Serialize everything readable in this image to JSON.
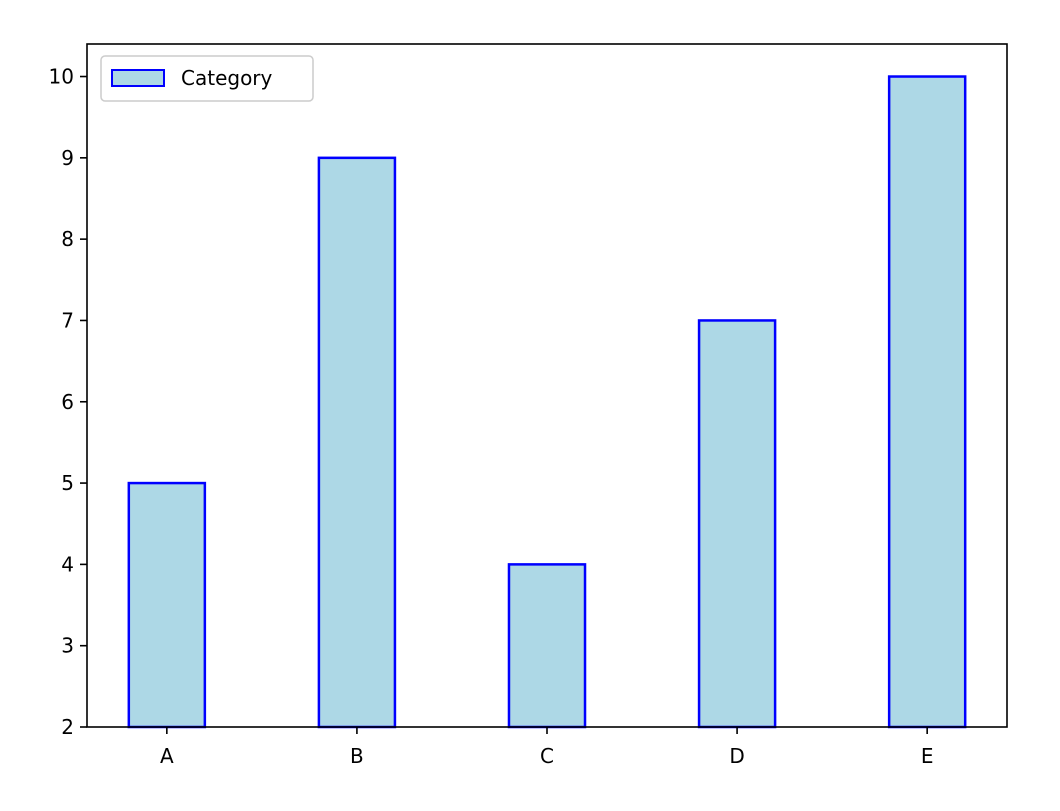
{
  "chart_data": {
    "type": "bar",
    "title": "",
    "xlabel": "",
    "ylabel": "",
    "categories": [
      "A",
      "B",
      "C",
      "D",
      "E"
    ],
    "series": [
      {
        "name": "Category",
        "values": [
          5,
          9,
          4,
          7,
          10
        ]
      }
    ],
    "ylim": [
      2,
      10.4
    ],
    "yticks": [
      2,
      3,
      4,
      5,
      6,
      7,
      8,
      9,
      10
    ],
    "grid": false,
    "legend_position": "top-left",
    "colors": {
      "bar_fill": "#add8e6",
      "bar_edge": "#0000ff",
      "axis": "#000000",
      "legend_frame": "#cccccc"
    }
  }
}
